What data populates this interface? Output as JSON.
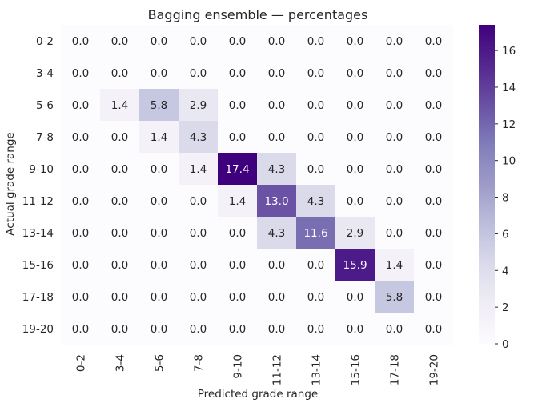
{
  "chart_data": {
    "type": "heatmap",
    "title": "Bagging ensemble — percentages",
    "xlabel": "Predicted grade range",
    "ylabel": "Actual grade range",
    "x_categories": [
      "0-2",
      "3-4",
      "5-6",
      "7-8",
      "9-10",
      "11-12",
      "13-14",
      "15-16",
      "17-18",
      "19-20"
    ],
    "y_categories": [
      "0-2",
      "3-4",
      "5-6",
      "7-8",
      "9-10",
      "11-12",
      "13-14",
      "15-16",
      "17-18",
      "19-20"
    ],
    "values": [
      [
        0.0,
        0.0,
        0.0,
        0.0,
        0.0,
        0.0,
        0.0,
        0.0,
        0.0,
        0.0
      ],
      [
        0.0,
        0.0,
        0.0,
        0.0,
        0.0,
        0.0,
        0.0,
        0.0,
        0.0,
        0.0
      ],
      [
        0.0,
        1.4,
        5.8,
        2.9,
        0.0,
        0.0,
        0.0,
        0.0,
        0.0,
        0.0
      ],
      [
        0.0,
        0.0,
        1.4,
        4.3,
        0.0,
        0.0,
        0.0,
        0.0,
        0.0,
        0.0
      ],
      [
        0.0,
        0.0,
        0.0,
        1.4,
        17.4,
        4.3,
        0.0,
        0.0,
        0.0,
        0.0
      ],
      [
        0.0,
        0.0,
        0.0,
        0.0,
        1.4,
        13.0,
        4.3,
        0.0,
        0.0,
        0.0
      ],
      [
        0.0,
        0.0,
        0.0,
        0.0,
        0.0,
        4.3,
        11.6,
        2.9,
        0.0,
        0.0
      ],
      [
        0.0,
        0.0,
        0.0,
        0.0,
        0.0,
        0.0,
        0.0,
        15.9,
        1.4,
        0.0
      ],
      [
        0.0,
        0.0,
        0.0,
        0.0,
        0.0,
        0.0,
        0.0,
        0.0,
        5.8,
        0.0
      ],
      [
        0.0,
        0.0,
        0.0,
        0.0,
        0.0,
        0.0,
        0.0,
        0.0,
        0.0,
        0.0
      ]
    ],
    "colormap": "Purples",
    "colorbar": {
      "min": 0,
      "max": 17.4,
      "ticks": [
        0,
        2,
        4,
        6,
        8,
        10,
        12,
        14,
        16
      ]
    }
  }
}
